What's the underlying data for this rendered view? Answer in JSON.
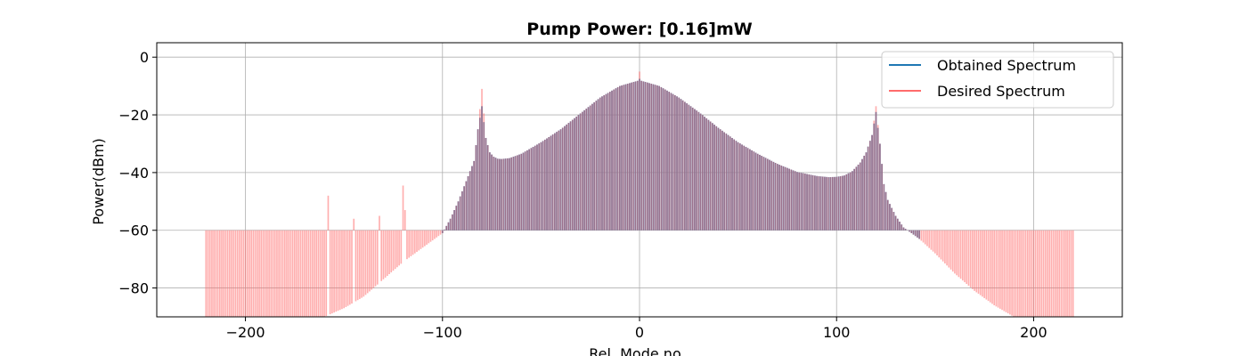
{
  "chart_data": {
    "type": "bar",
    "title": "Pump Power: [0.16]mW",
    "xlabel": "Rel. Mode no",
    "ylabel": "Power(dBm)",
    "xlim": [
      -245,
      245
    ],
    "ylim": [
      -90,
      5
    ],
    "baseline": -60,
    "grid": true,
    "legend_position": "top-right",
    "xticks": [
      -200,
      -100,
      0,
      100,
      200
    ],
    "xtick_labels": [
      "−200",
      "−100",
      "0",
      "100",
      "200"
    ],
    "yticks": [
      0,
      -20,
      -40,
      -60,
      -80
    ],
    "ytick_labels": [
      "0",
      "−20",
      "−40",
      "−60",
      "−80"
    ],
    "mode_range": [
      -220,
      220
    ],
    "series": [
      {
        "name": "Obtained Spectrum",
        "color": "#1f77b4",
        "envelope": {
          "modes": [
            -100,
            -96,
            -92,
            -88,
            -84,
            -82,
            -80,
            -78,
            -76,
            -74,
            -72,
            -70,
            -66,
            -60,
            -50,
            -40,
            -30,
            -20,
            -10,
            0,
            10,
            20,
            30,
            40,
            50,
            60,
            70,
            80,
            90,
            96,
            100,
            104,
            108,
            112,
            115,
            118,
            120,
            122,
            124,
            126,
            130,
            134,
            138,
            142
          ],
          "values": [
            -61,
            -56,
            -50,
            -43,
            -36,
            -25,
            -17,
            -28,
            -33,
            -34.5,
            -35.2,
            -35.3,
            -35,
            -33.5,
            -29.5,
            -25,
            -19.5,
            -14,
            -10,
            -8,
            -10,
            -14,
            -19,
            -24.5,
            -29.5,
            -33.5,
            -37,
            -39.8,
            -41.2,
            -41.6,
            -41.5,
            -41,
            -39.5,
            -36.5,
            -33,
            -27,
            -19,
            -30,
            -44,
            -49.5,
            -55,
            -59,
            -61,
            -63
          ]
        },
        "spikes": [
          [
            0,
            -7.5
          ]
        ]
      },
      {
        "name": "Desired Spectrum",
        "color": "#ff6b6b",
        "envelope": {
          "modes": [
            -220,
            -215,
            -210,
            -200,
            -190,
            -180,
            -170,
            -160,
            -150,
            -140,
            -130,
            -120,
            -110,
            -100,
            -96,
            -92,
            -88,
            -84,
            -82,
            -80,
            -78,
            -76,
            -74,
            -72,
            -70,
            -66,
            -60,
            -50,
            -40,
            -30,
            -20,
            -10,
            0,
            10,
            20,
            30,
            40,
            50,
            60,
            70,
            80,
            90,
            96,
            100,
            104,
            108,
            112,
            115,
            118,
            120,
            122,
            124,
            126,
            130,
            134,
            138,
            142,
            150,
            160,
            170,
            180,
            190,
            200,
            210,
            220
          ],
          "values": [
            -95,
            -95,
            -95,
            -95,
            -95,
            -93,
            -91,
            -90,
            -87,
            -83,
            -77,
            -71,
            -66,
            -61,
            -56,
            -50,
            -43,
            -36,
            -25,
            -11,
            -28,
            -33,
            -34.5,
            -35.2,
            -35.3,
            -35,
            -33.5,
            -29.5,
            -25,
            -19.5,
            -14,
            -10,
            -8,
            -10,
            -14,
            -19,
            -24.5,
            -29.5,
            -33.5,
            -37,
            -39.8,
            -41.2,
            -41.6,
            -41.5,
            -41,
            -39.5,
            -36.5,
            -33,
            -27,
            -17,
            -30,
            -44,
            -49.5,
            -55,
            -59,
            -61,
            -63,
            -68,
            -75,
            -81,
            -86,
            -90,
            -93,
            -95,
            -95
          ]
        },
        "spikes": [
          [
            -158,
            -48
          ],
          [
            -145,
            -56
          ],
          [
            -132,
            -55
          ],
          [
            -120,
            -44.5
          ],
          [
            -119,
            -53
          ],
          [
            0,
            -5
          ],
          [
            -80,
            -11
          ],
          [
            120,
            -17
          ]
        ]
      }
    ]
  }
}
